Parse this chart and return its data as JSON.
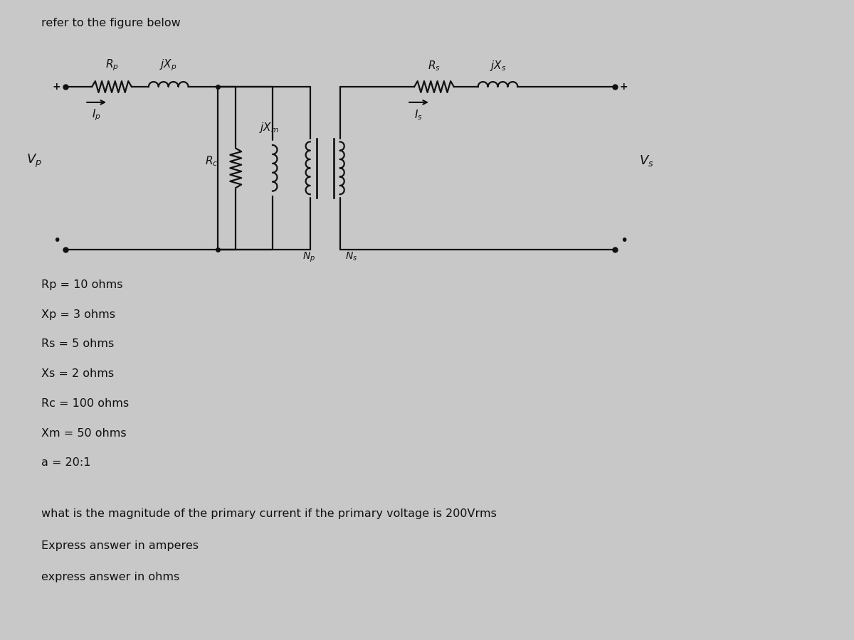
{
  "bg_color": "#c8c8c8",
  "panel_color": "#d4d4d4",
  "title": "refer to the figure below",
  "params": [
    "Rp = 10 ohms",
    "Xp = 3 ohms",
    "Rs = 5 ohms",
    "Xs = 2 ohms",
    "Rc = 100 ohms",
    "Xm = 50 ohms",
    "a = 20:1"
  ],
  "question": "what is the magnitude of the primary current if the primary voltage is 200Vrms",
  "answer1": "Express answer in amperes",
  "answer2": "express answer in ohms",
  "line_color": "#111111",
  "text_color": "#111111"
}
